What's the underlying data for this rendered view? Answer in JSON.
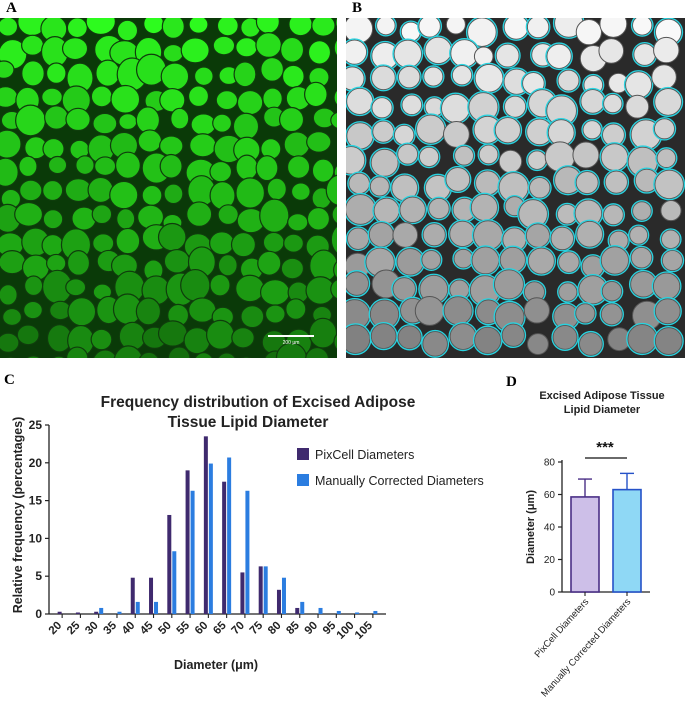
{
  "panels": {
    "a_label": "A",
    "b_label": "B",
    "c_label": "C",
    "d_label": "D",
    "scale_bar": "200 µm"
  },
  "colors": {
    "pixcell": "#3f2a6e",
    "manual": "#2b7de0",
    "bar_pixcell_fill": "#cdbfe8",
    "bar_pixcell_stroke": "#4a2f86",
    "bar_manual_fill": "#8fd8f5",
    "bar_manual_stroke": "#2552c8",
    "circle": "#29d3e0"
  },
  "chart_data": [
    {
      "type": "bar",
      "title": "Frequency distribution of Excised Adipose Tissue Lipid Diameter",
      "title_lines": [
        "Frequency distribution of Excised Adipose",
        "Tissue Lipid Diameter"
      ],
      "xlabel": "Diameter (μm)",
      "ylabel": "Relative frequency (percentages)",
      "categories": [
        "20",
        "25",
        "30",
        "35",
        "40",
        "45",
        "50",
        "55",
        "60",
        "65",
        "70",
        "75",
        "80",
        "85",
        "90",
        "95",
        "100",
        "105"
      ],
      "ylim": [
        0,
        25
      ],
      "yticks": [
        0,
        5,
        10,
        15,
        20,
        25
      ],
      "series": [
        {
          "name": "PixCell Diameters",
          "values": [
            0.3,
            0.2,
            0.3,
            0,
            4.8,
            4.8,
            13.1,
            19.0,
            23.5,
            17.5,
            5.5,
            6.3,
            3.2,
            0.8,
            0,
            0,
            0,
            0
          ]
        },
        {
          "name": "Manually Corrected Diameters",
          "values": [
            0,
            0,
            0.8,
            0.3,
            1.6,
            1.6,
            8.3,
            16.3,
            19.9,
            20.7,
            16.3,
            6.3,
            4.8,
            1.6,
            0.8,
            0.4,
            0.2,
            0.4
          ]
        }
      ],
      "legend": "right"
    },
    {
      "type": "bar",
      "title": "Excised Adipose Tissue Lipid Diameter",
      "title_lines": [
        "Excised Adipose Tissue",
        "Lipid Diameter"
      ],
      "ylabel": "Diameter (μm)",
      "categories": [
        "PixCell Diameters",
        "Manually Corrected Diameters"
      ],
      "values": [
        58.5,
        63.0
      ],
      "error": [
        11.0,
        10.0
      ],
      "ylim": [
        0,
        80
      ],
      "yticks": [
        0,
        20,
        40,
        60,
        80
      ],
      "significance": "***"
    }
  ]
}
